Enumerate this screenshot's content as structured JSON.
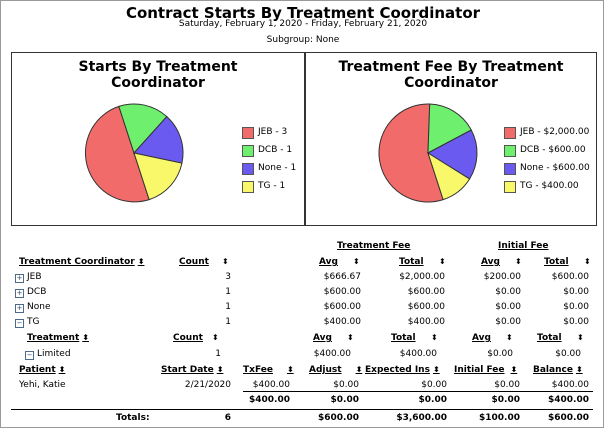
{
  "report": {
    "title": "Contract Starts By Treatment Coordinator",
    "date_range": "Saturday, February 1, 2020 - Friday, February 21, 2020",
    "subgroup": "Subgroup: None"
  },
  "colors": {
    "red": "#f26b6b",
    "green": "#6ef06e",
    "blue": "#6a5af0",
    "yellow": "#f8f86a"
  },
  "charts": [
    {
      "title": "Starts By Treatment Coordinator",
      "legend": [
        "JEB - 3",
        "DCB - 1",
        "None - 1",
        "TG - 1"
      ]
    },
    {
      "title": "Treatment Fee By Treatment Coordinator",
      "legend": [
        "JEB - $2,000.00",
        "DCB - $600.00",
        "None - $600.00",
        "TG - $400.00"
      ]
    }
  ],
  "chart_data": [
    {
      "type": "pie",
      "title": "Starts By Treatment Coordinator",
      "categories": [
        "JEB",
        "DCB",
        "None",
        "TG"
      ],
      "values": [
        3,
        1,
        1,
        1
      ]
    },
    {
      "type": "pie",
      "title": "Treatment Fee By Treatment Coordinator",
      "categories": [
        "JEB",
        "DCB",
        "None",
        "TG"
      ],
      "values": [
        2000,
        600,
        600,
        400
      ]
    }
  ],
  "table": {
    "group_headers": {
      "treatment_fee": "Treatment Fee",
      "initial_fee": "Initial Fee"
    },
    "headers": {
      "coordinator": "Treatment Coordinator",
      "count": "Count",
      "avg": "Avg",
      "total": "Total"
    },
    "rows": [
      {
        "name": "JEB",
        "count": "3",
        "tf_avg": "$666.67",
        "tf_total": "$2,000.00",
        "if_avg": "$200.00",
        "if_total": "$600.00",
        "expand": "+"
      },
      {
        "name": "DCB",
        "count": "1",
        "tf_avg": "$600.00",
        "tf_total": "$600.00",
        "if_avg": "$0.00",
        "if_total": "$0.00",
        "expand": "+"
      },
      {
        "name": "None",
        "count": "1",
        "tf_avg": "$600.00",
        "tf_total": "$600.00",
        "if_avg": "$0.00",
        "if_total": "$0.00",
        "expand": "+"
      },
      {
        "name": "TG",
        "count": "1",
        "tf_avg": "$400.00",
        "tf_total": "$400.00",
        "if_avg": "$0.00",
        "if_total": "$0.00",
        "expand": "−"
      }
    ],
    "sub_headers": {
      "treatment": "Treatment",
      "count": "Count",
      "avg": "Avg",
      "total": "Total"
    },
    "sub_row": {
      "name": "Limited",
      "count": "1",
      "tf_avg": "$400.00",
      "tf_total": "$400.00",
      "if_avg": "$0.00",
      "if_total": "$0.00",
      "expand": "−"
    },
    "patient_headers": {
      "patient": "Patient",
      "start_date": "Start Date",
      "txfee": "TxFee",
      "adjust": "Adjust",
      "expected_ins": "Expected Ins",
      "initial_fee": "Initial Fee",
      "balance": "Balance"
    },
    "patient_row": {
      "patient": "Yehi, Katie",
      "start_date": "2/21/2020",
      "txfee": "$400.00",
      "adjust": "$0.00",
      "expected_ins": "$0.00",
      "initial_fee": "$0.00",
      "balance": "$400.00"
    },
    "patient_totals": {
      "txfee": "$400.00",
      "adjust": "$0.00",
      "expected_ins": "$0.00",
      "initial_fee": "$0.00",
      "balance": "$400.00"
    },
    "totals": {
      "label": "Totals:",
      "count": "6",
      "c3": "$600.00",
      "c4": "$3,600.00",
      "c5": "$100.00",
      "c6": "$600.00"
    }
  }
}
